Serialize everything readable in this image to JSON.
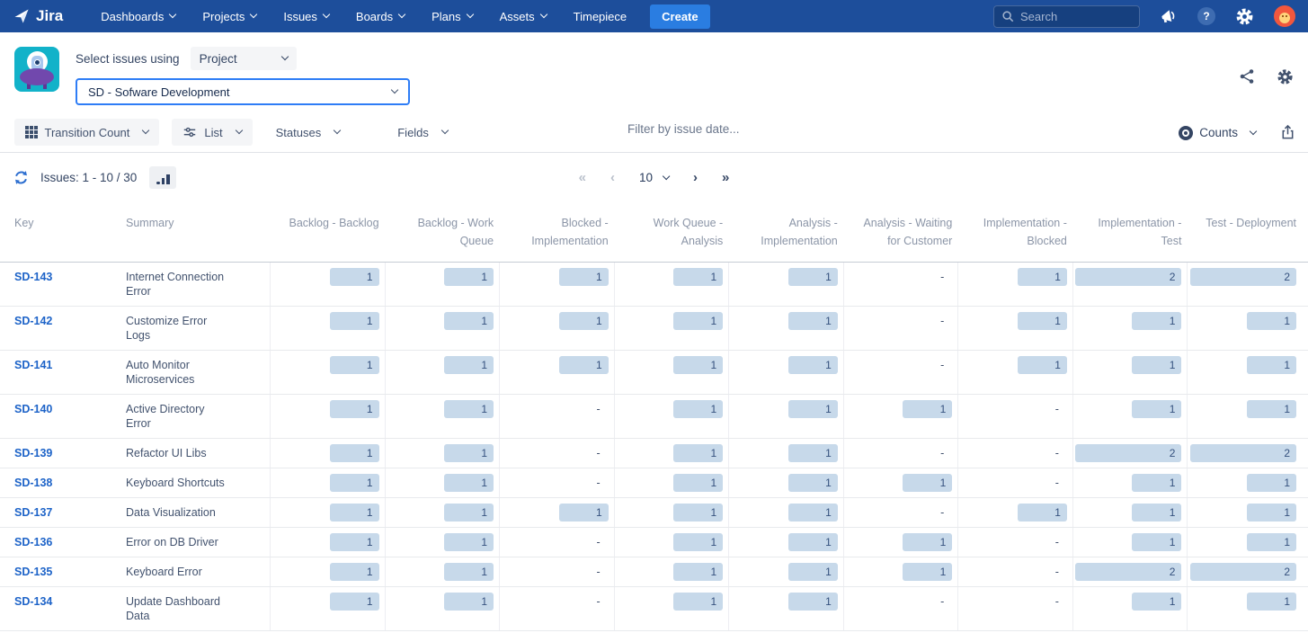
{
  "nav": {
    "brand": "Jira",
    "items": [
      {
        "label": "Dashboards",
        "has_menu": true
      },
      {
        "label": "Projects",
        "has_menu": true
      },
      {
        "label": "Issues",
        "has_menu": true
      },
      {
        "label": "Boards",
        "has_menu": true
      },
      {
        "label": "Plans",
        "has_menu": true
      },
      {
        "label": "Assets",
        "has_menu": true
      },
      {
        "label": "Timepiece",
        "has_menu": false
      }
    ],
    "create_label": "Create",
    "search_placeholder": "Search"
  },
  "header": {
    "select_issues_label": "Select issues using",
    "mode_value": "Project",
    "project_value": "SD - Sofware Development"
  },
  "toolbar": {
    "transition_count_label": "Transition Count",
    "list_label": "List",
    "statuses_label": "Statuses",
    "fields_label": "Fields",
    "filter_placeholder": "Filter by issue date...",
    "counts_label": "Counts"
  },
  "statusbar": {
    "issues_label": "Issues: 1 - 10 / 30",
    "pagination": {
      "first": "«",
      "prev": "‹",
      "next": "›",
      "last": "»",
      "page_size": "10"
    }
  },
  "icons": {
    "help_glyph": "?",
    "list": [
      "jira-logo-icon",
      "chevron-down-icon",
      "search-icon",
      "announcements-icon",
      "help-icon",
      "settings-gear-icon",
      "user-avatar",
      "ufo-app-icon",
      "share-icon",
      "grid-icon",
      "sliders-icon",
      "counts-eye-icon",
      "export-icon",
      "refresh-icon",
      "bar-chart-icon"
    ]
  },
  "table": {
    "key_header": "Key",
    "summary_header": "Summary",
    "empty_symbol": "-",
    "columns": [
      "Backlog - Backlog",
      "Backlog - Work Queue",
      "Blocked - Implementation",
      "Work Queue - Analysis",
      "Analysis - Implementation",
      "Analysis - Waiting for Customer",
      "Implementation - Blocked",
      "Implementation - Test",
      "Test - Deployment"
    ],
    "rows": [
      {
        "key": "SD-143",
        "summary": "Internet Connection Error",
        "values": [
          1,
          1,
          1,
          1,
          1,
          null,
          1,
          2,
          2
        ]
      },
      {
        "key": "SD-142",
        "summary": "Customize Error Logs",
        "values": [
          1,
          1,
          1,
          1,
          1,
          null,
          1,
          1,
          1
        ]
      },
      {
        "key": "SD-141",
        "summary": "Auto Monitor Microservices",
        "values": [
          1,
          1,
          1,
          1,
          1,
          null,
          1,
          1,
          1
        ]
      },
      {
        "key": "SD-140",
        "summary": "Active Directory Error",
        "values": [
          1,
          1,
          null,
          1,
          1,
          1,
          null,
          1,
          1
        ]
      },
      {
        "key": "SD-139",
        "summary": "Refactor UI Libs",
        "values": [
          1,
          1,
          null,
          1,
          1,
          null,
          null,
          2,
          2
        ]
      },
      {
        "key": "SD-138",
        "summary": "Keyboard Shortcuts",
        "values": [
          1,
          1,
          null,
          1,
          1,
          1,
          null,
          1,
          1
        ]
      },
      {
        "key": "SD-137",
        "summary": "Data Visualization",
        "values": [
          1,
          1,
          1,
          1,
          1,
          null,
          1,
          1,
          1
        ]
      },
      {
        "key": "SD-136",
        "summary": "Error on DB Driver",
        "values": [
          1,
          1,
          null,
          1,
          1,
          1,
          null,
          1,
          1
        ]
      },
      {
        "key": "SD-135",
        "summary": "Keyboard Error",
        "values": [
          1,
          1,
          null,
          1,
          1,
          1,
          null,
          2,
          2
        ]
      },
      {
        "key": "SD-134",
        "summary": "Update Dashboard Data",
        "values": [
          1,
          1,
          null,
          1,
          1,
          null,
          null,
          1,
          1
        ]
      }
    ]
  },
  "colors": {
    "nav_bg": "#1d4e9b",
    "create_btn": "#2a7de1",
    "accent_blue": "#2e7df6",
    "link_blue": "#1d63c8",
    "pill_bg": "#c7d9ea",
    "pill_text": "#35517e",
    "header_text": "#8b95a7",
    "body_text": "#42526e",
    "button_bg": "#f4f5f7",
    "border_light": "#e8eaed",
    "app_icon_teal": "#12b2c9",
    "app_icon_purple": "#7148ad",
    "avatar_orange": "#f2573d"
  }
}
